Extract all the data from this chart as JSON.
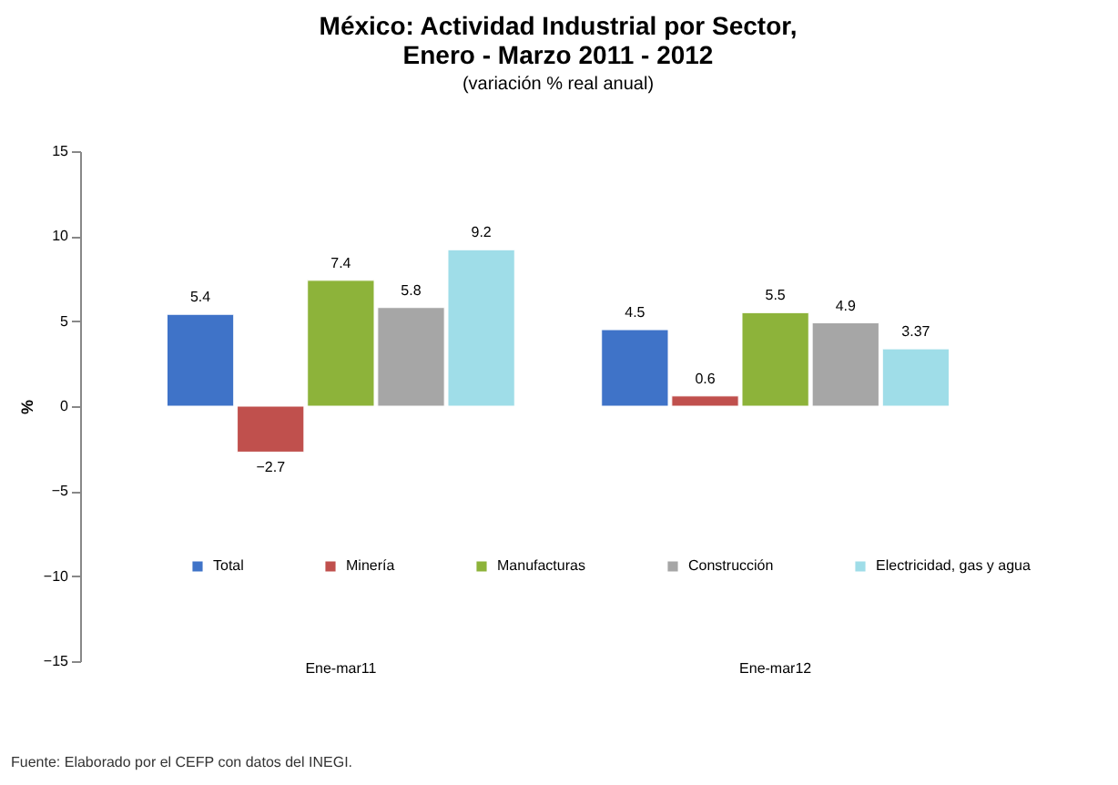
{
  "chart_data": {
    "type": "bar",
    "title": "México: Actividad Industrial por Sector, Enero - Marzo 2011 - 2012",
    "subtitle": "(variación % real anual)",
    "ylabel": "%",
    "categories": [
      "Ene-mar11",
      "Ene-mar12"
    ],
    "series": [
      {
        "name": "Total",
        "color": "#3f73c8",
        "values": [
          5.4,
          4.5
        ]
      },
      {
        "name": "Minería",
        "color": "#c0504d",
        "values": [
          -2.7,
          0.6
        ]
      },
      {
        "name": "Manufacturas",
        "color": "#8db33a",
        "values": [
          7.4,
          5.5
        ]
      },
      {
        "name": "Construcción",
        "color": "#a6a6a6",
        "values": [
          5.8,
          4.9
        ]
      },
      {
        "name": "Electricidad, gas y agua",
        "color": "#9fdde8",
        "values": [
          9.2,
          3.37
        ]
      }
    ],
    "ylim": [
      -15,
      15
    ],
    "yticks": [
      -15,
      -10,
      -5,
      0,
      5,
      10,
      15
    ],
    "grid": false,
    "legend": "bottom",
    "data_labels": true,
    "annotations": [
      "Fuente: Elaborado por el CEFP con datos del INEGI."
    ]
  }
}
